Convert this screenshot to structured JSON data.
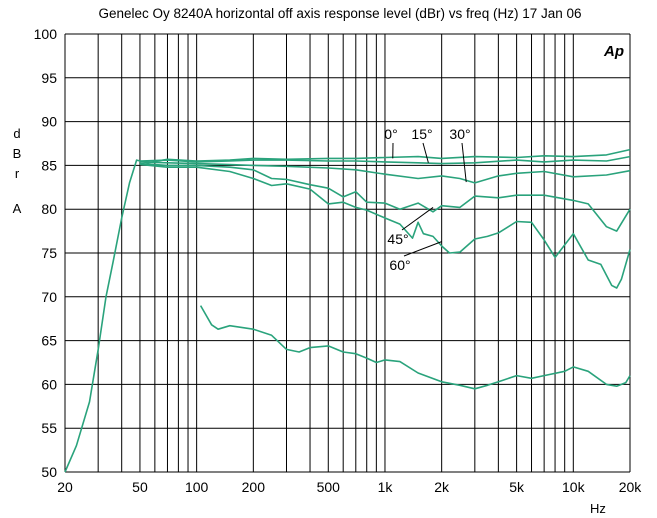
{
  "chart_data": {
    "type": "line",
    "title": "Genelec Oy 8240A horizontal off axis response level (dBr) vs freq (Hz) 17 Jan 06",
    "xlabel": "Hz",
    "ylabel": [
      "d",
      "B",
      "r",
      "A"
    ],
    "xscale": "log",
    "xlim": [
      20,
      20000
    ],
    "ylim": [
      50,
      100
    ],
    "xticks": [
      {
        "value": 20,
        "label": "20"
      },
      {
        "value": 50,
        "label": "50"
      },
      {
        "value": 100,
        "label": "100"
      },
      {
        "value": 200,
        "label": "200"
      },
      {
        "value": 500,
        "label": "500"
      },
      {
        "value": 1000,
        "label": "1k"
      },
      {
        "value": 2000,
        "label": "2k"
      },
      {
        "value": 5000,
        "label": "5k"
      },
      {
        "value": 10000,
        "label": "10k"
      },
      {
        "value": 20000,
        "label": "20k"
      }
    ],
    "yticks": [
      50,
      55,
      60,
      65,
      70,
      75,
      80,
      85,
      90,
      95,
      100
    ],
    "grid": true,
    "logo": "Ap",
    "color": "#2aa37c",
    "series": [
      {
        "name": "0°",
        "points": [
          [
            20,
            50
          ],
          [
            23,
            53
          ],
          [
            27,
            58
          ],
          [
            30,
            64
          ],
          [
            33,
            70
          ],
          [
            36,
            74
          ],
          [
            40,
            79
          ],
          [
            44,
            83
          ],
          [
            48,
            85.6
          ],
          [
            55,
            85.3
          ],
          [
            70,
            85.7
          ],
          [
            100,
            85.5
          ],
          [
            150,
            85.6
          ],
          [
            200,
            85.8
          ],
          [
            300,
            85.7
          ],
          [
            500,
            85.8
          ],
          [
            700,
            85.8
          ],
          [
            1000,
            85.9
          ],
          [
            1500,
            86
          ],
          [
            2000,
            85.8
          ],
          [
            3000,
            86
          ],
          [
            5000,
            85.9
          ],
          [
            7000,
            86.1
          ],
          [
            10000,
            86
          ],
          [
            15000,
            86.2
          ],
          [
            20000,
            86.8
          ]
        ]
      },
      {
        "name": "15°",
        "points": [
          [
            50,
            85.5
          ],
          [
            70,
            85.6
          ],
          [
            100,
            85.4
          ],
          [
            150,
            85.5
          ],
          [
            200,
            85.6
          ],
          [
            300,
            85.6
          ],
          [
            500,
            85.5
          ],
          [
            700,
            85.5
          ],
          [
            1000,
            85.4
          ],
          [
            1500,
            85.3
          ],
          [
            2000,
            85.2
          ],
          [
            3000,
            85.3
          ],
          [
            5000,
            85.6
          ],
          [
            7000,
            85.4
          ],
          [
            10000,
            85.6
          ],
          [
            15000,
            85.5
          ],
          [
            20000,
            86
          ]
        ]
      },
      {
        "name": "30°",
        "points": [
          [
            50,
            85.4
          ],
          [
            70,
            85.3
          ],
          [
            100,
            85.2
          ],
          [
            150,
            85.1
          ],
          [
            200,
            85
          ],
          [
            300,
            84.9
          ],
          [
            500,
            84.7
          ],
          [
            700,
            84.5
          ],
          [
            1000,
            84
          ],
          [
            1500,
            83.5
          ],
          [
            2000,
            83.8
          ],
          [
            2500,
            83.5
          ],
          [
            3000,
            83
          ],
          [
            4000,
            83.8
          ],
          [
            5000,
            84.1
          ],
          [
            7000,
            84.3
          ],
          [
            10000,
            83.7
          ],
          [
            15000,
            83.9
          ],
          [
            20000,
            84.4
          ]
        ]
      },
      {
        "name": "45°",
        "points": [
          [
            50,
            85.2
          ],
          [
            70,
            85
          ],
          [
            100,
            85
          ],
          [
            150,
            84.8
          ],
          [
            200,
            84.5
          ],
          [
            250,
            83.5
          ],
          [
            300,
            83.4
          ],
          [
            400,
            82.8
          ],
          [
            500,
            82.4
          ],
          [
            600,
            81.4
          ],
          [
            700,
            82
          ],
          [
            800,
            80.8
          ],
          [
            1000,
            80.7
          ],
          [
            1200,
            80
          ],
          [
            1500,
            80.7
          ],
          [
            1800,
            79.7
          ],
          [
            2000,
            80.4
          ],
          [
            2500,
            80.2
          ],
          [
            3000,
            81.5
          ],
          [
            4000,
            81.3
          ],
          [
            5000,
            81.6
          ],
          [
            7000,
            81.6
          ],
          [
            10000,
            81
          ],
          [
            12000,
            80.6
          ],
          [
            15000,
            78
          ],
          [
            17000,
            77.5
          ],
          [
            20000,
            80
          ]
        ]
      },
      {
        "name": "60°",
        "points": [
          [
            50,
            85.1
          ],
          [
            70,
            84.8
          ],
          [
            100,
            84.8
          ],
          [
            150,
            84.3
          ],
          [
            200,
            83.5
          ],
          [
            250,
            82.7
          ],
          [
            300,
            82.9
          ],
          [
            400,
            82.3
          ],
          [
            500,
            80.6
          ],
          [
            600,
            80.8
          ],
          [
            700,
            80.2
          ],
          [
            800,
            79.9
          ],
          [
            1000,
            79
          ],
          [
            1200,
            78.3
          ],
          [
            1400,
            76.7
          ],
          [
            1500,
            78.5
          ],
          [
            1600,
            77.2
          ],
          [
            1800,
            76.9
          ],
          [
            2000,
            75.8
          ],
          [
            2200,
            75
          ],
          [
            2500,
            75.1
          ],
          [
            3000,
            76.6
          ],
          [
            3500,
            76.9
          ],
          [
            4000,
            77.3
          ],
          [
            5000,
            78.6
          ],
          [
            6000,
            78.5
          ],
          [
            7000,
            76.5
          ],
          [
            8000,
            74.5
          ],
          [
            10000,
            77.2
          ],
          [
            12000,
            74.2
          ],
          [
            14000,
            73.7
          ],
          [
            16000,
            71.3
          ],
          [
            17000,
            71
          ],
          [
            18000,
            72
          ],
          [
            20000,
            75.4
          ]
        ]
      },
      {
        "name": "",
        "points": [
          [
            105,
            69
          ],
          [
            120,
            66.8
          ],
          [
            130,
            66.3
          ],
          [
            150,
            66.7
          ],
          [
            200,
            66.3
          ],
          [
            250,
            65.6
          ],
          [
            300,
            64
          ],
          [
            350,
            63.7
          ],
          [
            400,
            64.2
          ],
          [
            500,
            64.4
          ],
          [
            600,
            63.7
          ],
          [
            700,
            63.5
          ],
          [
            800,
            63
          ],
          [
            900,
            62.5
          ],
          [
            1000,
            62.8
          ],
          [
            1200,
            62.6
          ],
          [
            1500,
            61.3
          ],
          [
            2000,
            60.3
          ],
          [
            2500,
            59.9
          ],
          [
            3000,
            59.5
          ],
          [
            3500,
            59.9
          ],
          [
            4000,
            60.3
          ],
          [
            5000,
            61
          ],
          [
            6000,
            60.7
          ],
          [
            7000,
            61
          ],
          [
            9000,
            61.5
          ],
          [
            10000,
            62
          ],
          [
            12000,
            61.5
          ],
          [
            15000,
            60
          ],
          [
            17000,
            59.8
          ],
          [
            19000,
            60.2
          ],
          [
            20000,
            61
          ]
        ]
      }
    ],
    "annotations": [
      {
        "text": "0°",
        "points_to": [
          1100,
          85.8
        ]
      },
      {
        "text": "15°",
        "points_to": [
          1700,
          85.3
        ]
      },
      {
        "text": "30°",
        "points_to": [
          2700,
          83.1
        ]
      },
      {
        "text": "45°",
        "points_to": [
          1800,
          80.2
        ]
      },
      {
        "text": "60°",
        "points_to": [
          2000,
          76.3
        ]
      }
    ]
  }
}
